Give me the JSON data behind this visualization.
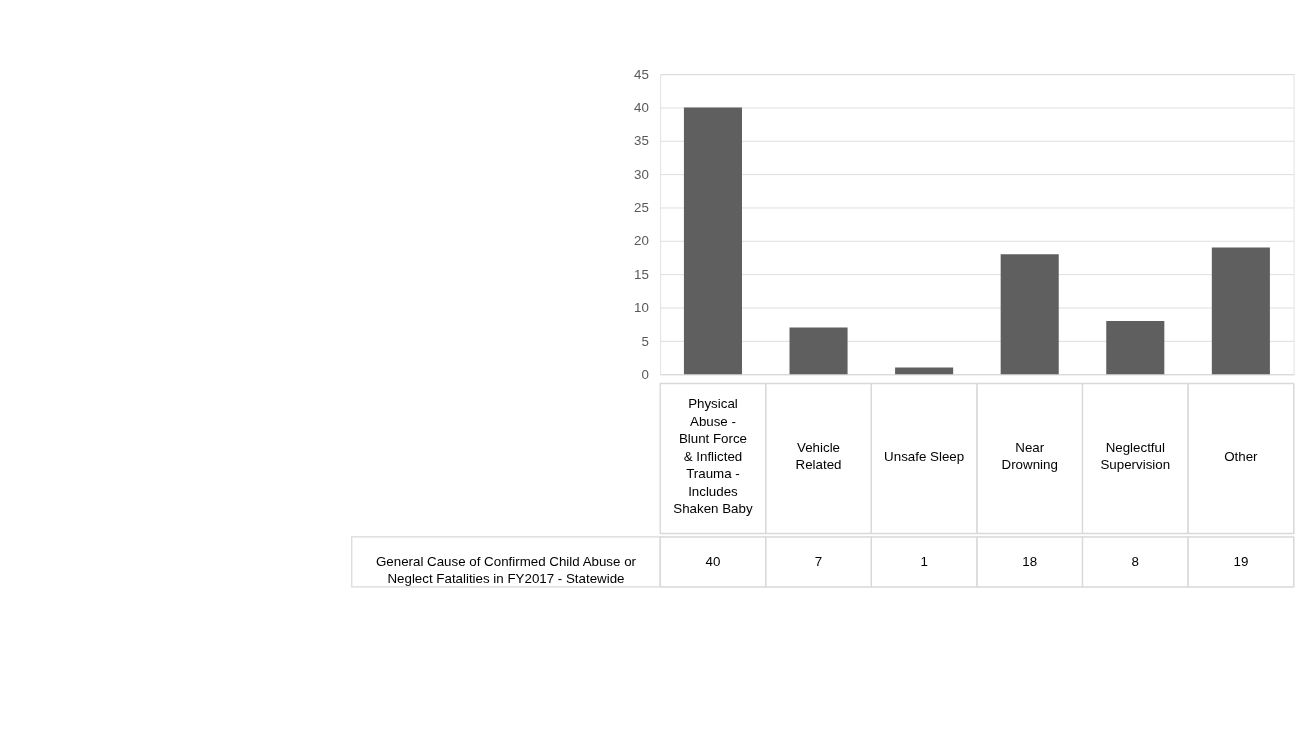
{
  "chart_data": {
    "type": "bar",
    "categories": [
      "Physical Abuse - Blunt Force & Inflicted Trauma - Includes Shaken Baby",
      "Vehicle Related",
      "Unsafe Sleep",
      "Near Drowning",
      "Neglectful Supervision",
      "Other"
    ],
    "series": [
      {
        "name": "General Cause of Confirmed Child Abuse or Neglect Fatalities in FY2017 - Statewide",
        "color": "#5f5f5f",
        "values": [
          40,
          7,
          1,
          18,
          8,
          19
        ]
      }
    ],
    "ylim": [
      0,
      45
    ],
    "yticks": [
      0,
      5,
      10,
      15,
      20,
      25,
      30,
      35,
      40,
      45
    ],
    "grid": "y",
    "data_labels": true
  }
}
